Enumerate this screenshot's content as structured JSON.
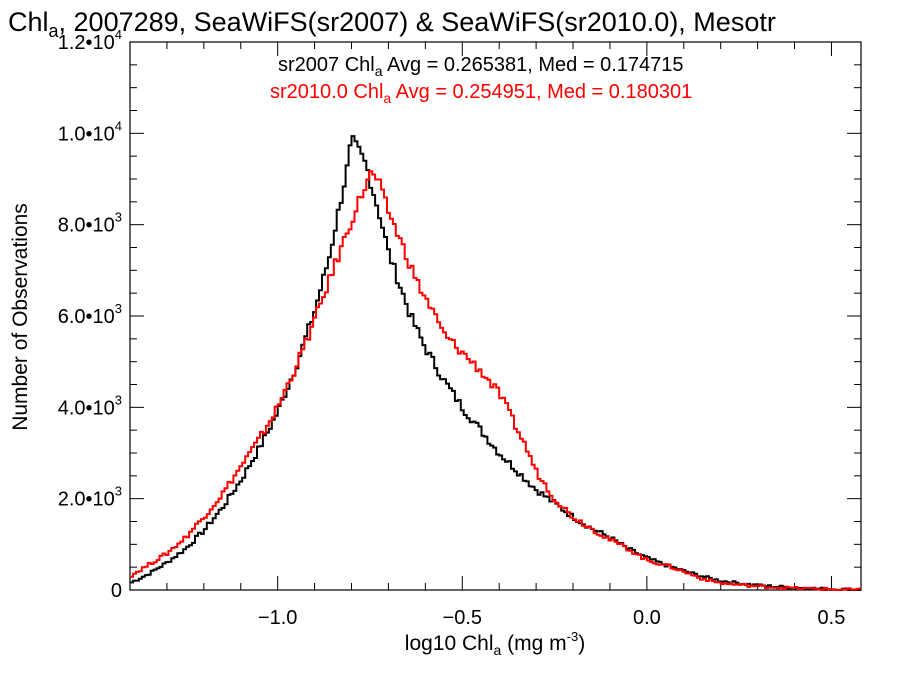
{
  "chart_data": {
    "type": "line",
    "title_main": "Chl",
    "title_sub": "a",
    "title_rest": ", 2007289, SeaWiFS(sr2007) & SeaWiFS(sr2010.0), Mesotr",
    "xlabel_main": "log10 Chl",
    "xlabel_sub": "a",
    "xlabel_rest": " (mg m",
    "xlabel_sup": "-3",
    "xlabel_end": ")",
    "ylabel": "Number of Observations",
    "xlim": [
      -1.4,
      0.58
    ],
    "ylim": [
      0,
      12000
    ],
    "x_ticks": [
      {
        "value": -1.0,
        "label": "−1.0"
      },
      {
        "value": -0.5,
        "label": "−0.5"
      },
      {
        "value": 0.0,
        "label": "0.0"
      },
      {
        "value": 0.5,
        "label": "0.5"
      }
    ],
    "y_ticks": [
      {
        "value": 0,
        "mant": "0",
        "exp": ""
      },
      {
        "value": 2000,
        "mant": "2.0•10",
        "exp": "3"
      },
      {
        "value": 4000,
        "mant": "4.0•10",
        "exp": "3"
      },
      {
        "value": 6000,
        "mant": "6.0•10",
        "exp": "3"
      },
      {
        "value": 8000,
        "mant": "8.0•10",
        "exp": "3"
      },
      {
        "value": 10000,
        "mant": "1.0•10",
        "exp": "4"
      },
      {
        "value": 12000,
        "mant": "1.2•10",
        "exp": "4"
      }
    ],
    "series": [
      {
        "legend_prefix": "sr2007 Chl",
        "legend_sub": "a",
        "legend_rest": " Avg = 0.265381, Med = 0.174715",
        "color": "#000000",
        "step": "steps-mid",
        "points": [
          [
            -1.4,
            150
          ],
          [
            -1.35,
            350
          ],
          [
            -1.3,
            600
          ],
          [
            -1.25,
            900
          ],
          [
            -1.2,
            1300
          ],
          [
            -1.15,
            1800
          ],
          [
            -1.1,
            2400
          ],
          [
            -1.05,
            3100
          ],
          [
            -1.0,
            3900
          ],
          [
            -0.95,
            4900
          ],
          [
            -0.9,
            6100
          ],
          [
            -0.86,
            7300
          ],
          [
            -0.83,
            8500
          ],
          [
            -0.81,
            9300
          ],
          [
            -0.8,
            9850
          ],
          [
            -0.78,
            9600
          ],
          [
            -0.76,
            9300
          ],
          [
            -0.74,
            8700
          ],
          [
            -0.72,
            8100
          ],
          [
            -0.7,
            7400
          ],
          [
            -0.67,
            6700
          ],
          [
            -0.64,
            6000
          ],
          [
            -0.6,
            5300
          ],
          [
            -0.55,
            4600
          ],
          [
            -0.5,
            4000
          ],
          [
            -0.45,
            3500
          ],
          [
            -0.4,
            3000
          ],
          [
            -0.35,
            2600
          ],
          [
            -0.3,
            2200
          ],
          [
            -0.25,
            1900
          ],
          [
            -0.2,
            1600
          ],
          [
            -0.15,
            1350
          ],
          [
            -0.1,
            1150
          ],
          [
            -0.05,
            900
          ],
          [
            0.0,
            700
          ],
          [
            0.05,
            550
          ],
          [
            0.1,
            420
          ],
          [
            0.15,
            300
          ],
          [
            0.2,
            200
          ],
          [
            0.3,
            100
          ],
          [
            0.4,
            50
          ],
          [
            0.5,
            20
          ],
          [
            0.58,
            5
          ]
        ]
      },
      {
        "legend_prefix": "sr2010.0 Chl",
        "legend_sub": "a",
        "legend_rest": " Avg = 0.254951, Med = 0.180301",
        "color": "#ff0000",
        "step": "steps-mid",
        "points": [
          [
            -1.4,
            300
          ],
          [
            -1.35,
            550
          ],
          [
            -1.3,
            800
          ],
          [
            -1.25,
            1150
          ],
          [
            -1.2,
            1600
          ],
          [
            -1.15,
            2100
          ],
          [
            -1.1,
            2700
          ],
          [
            -1.05,
            3300
          ],
          [
            -1.0,
            4000
          ],
          [
            -0.95,
            4900
          ],
          [
            -0.9,
            5900
          ],
          [
            -0.85,
            7000
          ],
          [
            -0.8,
            8100
          ],
          [
            -0.77,
            8700
          ],
          [
            -0.75,
            9100
          ],
          [
            -0.73,
            9000
          ],
          [
            -0.71,
            8500
          ],
          [
            -0.68,
            7900
          ],
          [
            -0.65,
            7300
          ],
          [
            -0.62,
            6700
          ],
          [
            -0.58,
            6100
          ],
          [
            -0.55,
            5600
          ],
          [
            -0.5,
            5200
          ],
          [
            -0.45,
            4800
          ],
          [
            -0.42,
            4500
          ],
          [
            -0.4,
            4300
          ],
          [
            -0.38,
            4000
          ],
          [
            -0.35,
            3500
          ],
          [
            -0.32,
            3000
          ],
          [
            -0.3,
            2600
          ],
          [
            -0.25,
            2000
          ],
          [
            -0.2,
            1600
          ],
          [
            -0.15,
            1350
          ],
          [
            -0.1,
            1100
          ],
          [
            -0.05,
            900
          ],
          [
            0.0,
            650
          ],
          [
            0.05,
            550
          ],
          [
            0.1,
            400
          ],
          [
            0.15,
            250
          ],
          [
            0.2,
            150
          ],
          [
            0.3,
            80
          ],
          [
            0.4,
            40
          ],
          [
            0.5,
            15
          ],
          [
            0.58,
            5
          ]
        ]
      }
    ],
    "grid": false,
    "legend_placement": "top-center"
  }
}
